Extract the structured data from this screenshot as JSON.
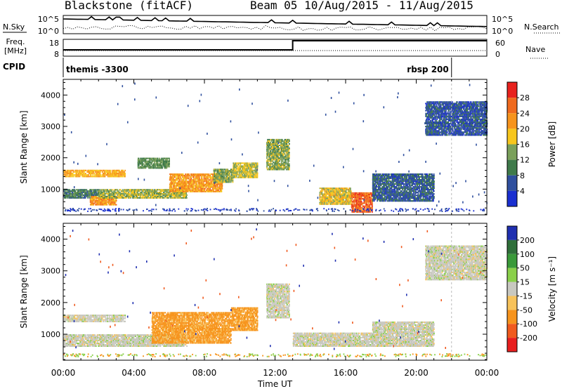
{
  "header": {
    "station": "Blackstone (fitACF)",
    "beam_info": "Beam 05   10/Aug/2015 - 11/Aug/2015"
  },
  "summary_panel": {
    "nsky_label": "N.Sky",
    "nsky_ticks": [
      "10^5",
      "10^0"
    ],
    "nsearch_label": "N.Search",
    "nsearch_ticks": [
      "10^5",
      "10^0"
    ],
    "freq_label_line1": "Freq.",
    "freq_label_line2": "[MHz]",
    "freq_ticks": [
      "18",
      "8"
    ],
    "nave_label": "Nave",
    "nave_ticks": [
      "60",
      "0"
    ],
    "cpid_label": "CPID",
    "cpid_segments": [
      {
        "name": "themis -3300",
        "start_hour": 0.0,
        "end_hour": 22.0
      },
      {
        "name": "rbsp 200",
        "start_hour": 22.0,
        "end_hour": 24.0
      }
    ],
    "freq_switch_hour": 13.0
  },
  "chart_data": [
    {
      "type": "heatmap",
      "panel": "power",
      "ylabel": "Slant Range [km]",
      "xlabel": "",
      "x_ticks": [
        "00:00",
        "04:00",
        "08:00",
        "12:00",
        "16:00",
        "20:00",
        "00:00"
      ],
      "xlim_hours": [
        0,
        24
      ],
      "ylim": [
        180,
        4500
      ],
      "y_ticks": [
        1000,
        2000,
        3000,
        4000
      ],
      "colorbar": {
        "label": "Power [dB]",
        "ticks": [
          "28",
          "24",
          "20",
          "16",
          "12",
          "8",
          "4"
        ],
        "colors": [
          "#e8221e",
          "#f06a1e",
          "#f7941d",
          "#f7c61d",
          "#7aa05a",
          "#3f7a4a",
          "#2f4f9e",
          "#1a2fd0"
        ]
      },
      "regions": [
        {
          "t0": 0.0,
          "t1": 3.5,
          "r0": 1380,
          "r1": 1620,
          "value": 20
        },
        {
          "t0": 0.0,
          "t1": 2.0,
          "r0": 700,
          "r1": 1000,
          "value": 10
        },
        {
          "t0": 1.5,
          "t1": 3.0,
          "r0": 480,
          "r1": 780,
          "value": 22
        },
        {
          "t0": 2.0,
          "t1": 7.0,
          "r0": 700,
          "r1": 1000,
          "value": 15
        },
        {
          "t0": 4.2,
          "t1": 6.0,
          "r0": 1650,
          "r1": 2000,
          "value": 12
        },
        {
          "t0": 6.0,
          "t1": 9.0,
          "r0": 900,
          "r1": 1500,
          "value": 22
        },
        {
          "t0": 8.5,
          "t1": 9.6,
          "r0": 1200,
          "r1": 1650,
          "value": 14
        },
        {
          "t0": 9.6,
          "t1": 11.0,
          "r0": 1350,
          "r1": 1850,
          "value": 16
        },
        {
          "t0": 11.5,
          "t1": 12.8,
          "r0": 1600,
          "r1": 2600,
          "value": 14
        },
        {
          "t0": 14.5,
          "t1": 16.3,
          "r0": 500,
          "r1": 1050,
          "value": 18
        },
        {
          "t0": 16.3,
          "t1": 17.5,
          "r0": 250,
          "r1": 900,
          "value": 26
        },
        {
          "t0": 17.5,
          "t1": 21.0,
          "r0": 600,
          "r1": 1500,
          "value": 7
        },
        {
          "t0": 20.5,
          "t1": 24.0,
          "r0": 2700,
          "r1": 3800,
          "value": 6
        }
      ]
    },
    {
      "type": "heatmap",
      "panel": "velocity",
      "ylabel": "Slant Range [km]",
      "xlabel": "Time UT",
      "x_ticks": [
        "00:00",
        "04:00",
        "08:00",
        "12:00",
        "16:00",
        "20:00",
        "00:00"
      ],
      "xlim_hours": [
        0,
        24
      ],
      "ylim": [
        180,
        4500
      ],
      "y_ticks": [
        1000,
        2000,
        3000,
        4000
      ],
      "colorbar": {
        "label": "Velocity [m s⁻¹]",
        "ticks": [
          "200",
          "100",
          "50",
          "15",
          "-15",
          "-50",
          "-100",
          "-200"
        ],
        "colors": [
          "#1f2fb0",
          "#2f6f3a",
          "#3a9a3a",
          "#8ad04a",
          "#c8c8c0",
          "#f7c25a",
          "#f7941d",
          "#f05a1e",
          "#e81e1e"
        ]
      },
      "regions": [
        {
          "t0": 0.0,
          "t1": 3.5,
          "r0": 1380,
          "r1": 1620,
          "value": 0
        },
        {
          "t0": 0.0,
          "t1": 7.0,
          "r0": 600,
          "r1": 1000,
          "value": 0
        },
        {
          "t0": 5.0,
          "t1": 9.5,
          "r0": 700,
          "r1": 1700,
          "value": -60
        },
        {
          "t0": 9.5,
          "t1": 11.0,
          "r0": 1100,
          "r1": 1850,
          "value": -60
        },
        {
          "t0": 11.5,
          "t1": 12.8,
          "r0": 1500,
          "r1": 2600,
          "value": 0
        },
        {
          "t0": 13.0,
          "t1": 17.5,
          "r0": 600,
          "r1": 1050,
          "value": 0
        },
        {
          "t0": 17.5,
          "t1": 21.0,
          "r0": 600,
          "r1": 1400,
          "value": 0
        },
        {
          "t0": 20.5,
          "t1": 24.0,
          "r0": 2700,
          "r1": 3800,
          "value": 0
        }
      ]
    }
  ]
}
